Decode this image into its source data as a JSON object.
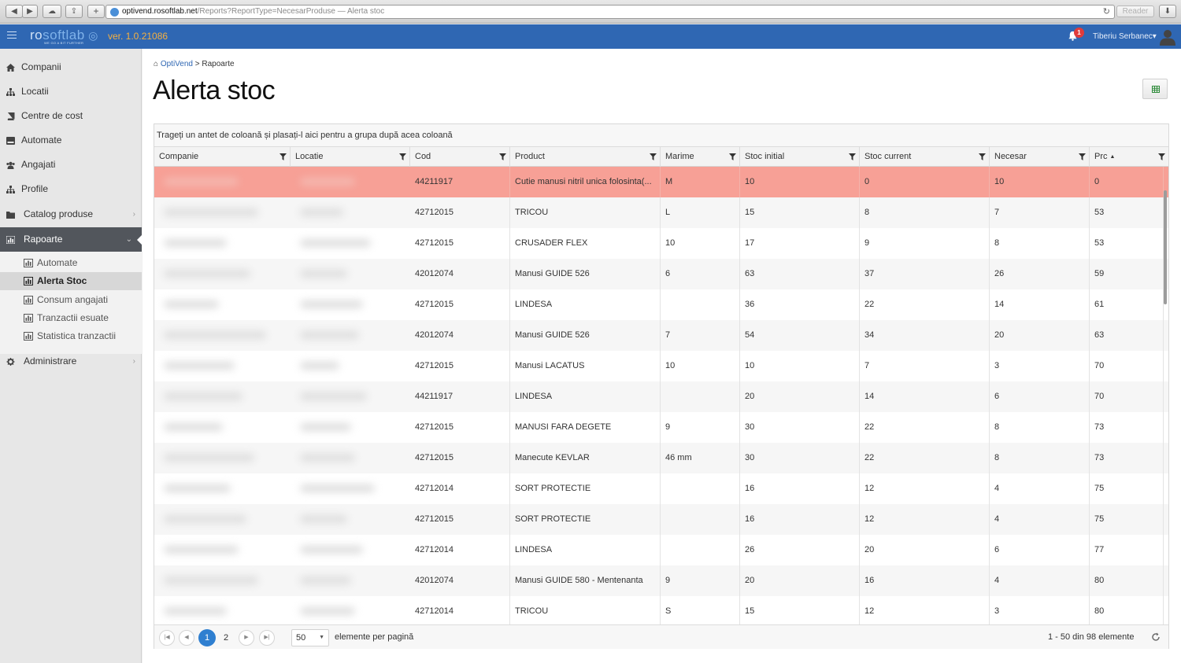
{
  "browser": {
    "url_host": "optivend.rosoftlab.net",
    "url_path": "/Reports?ReportType=NecesarProduse",
    "tab_title": " — Alerta stoc",
    "reader_label": "Reader"
  },
  "header": {
    "logo_part1": "ro",
    "logo_part2": "softlab",
    "logo_tagline": "WE GO A BIT FURTHER",
    "version": "ver. 1.0.21086",
    "notification_count": "1",
    "user_name": "Tiberiu Serbanec"
  },
  "sidebar": {
    "items": [
      {
        "label": "Companii",
        "icon": "home-icon"
      },
      {
        "label": "Locatii",
        "icon": "sitemap-icon"
      },
      {
        "label": "Centre de cost",
        "icon": "book-icon"
      },
      {
        "label": "Automate",
        "icon": "hdd-icon"
      },
      {
        "label": "Angajati",
        "icon": "users-icon"
      },
      {
        "label": "Profile",
        "icon": "sitemap-icon"
      },
      {
        "label": "Catalog produse",
        "icon": "folder-icon"
      },
      {
        "label": "Rapoarte",
        "icon": "bar-chart-icon"
      },
      {
        "label": "Administrare",
        "icon": "gear-icon"
      }
    ],
    "sub_items": [
      {
        "label": "Automate"
      },
      {
        "label": "Alerta Stoc"
      },
      {
        "label": "Consum angajati"
      },
      {
        "label": "Tranzactii esuate"
      },
      {
        "label": "Statistica tranzactii"
      }
    ]
  },
  "breadcrumb": {
    "home": "OptiVend",
    "separator": ">",
    "current": "Rapoarte"
  },
  "page_title": "Alerta stoc",
  "grid": {
    "group_hint": "Trageți un antet de coloană și plasați-l aici pentru a grupa după acea coloană",
    "columns": [
      "Companie",
      "Locatie",
      "Cod",
      "Product",
      "Marime",
      "Stoc initial",
      "Stoc current",
      "Necesar",
      "Prc"
    ],
    "rows": [
      {
        "cod": "44211917",
        "product": "Cutie manusi nitril unica folosinta(...",
        "marime": "M",
        "stoc_initial": "10",
        "stoc_current": "0",
        "necesar": "10",
        "prc": "0"
      },
      {
        "cod": "42712015",
        "product": "TRICOU",
        "marime": "L",
        "stoc_initial": "15",
        "stoc_current": "8",
        "necesar": "7",
        "prc": "53"
      },
      {
        "cod": "42712015",
        "product": "CRUSADER FLEX",
        "marime": "10",
        "stoc_initial": "17",
        "stoc_current": "9",
        "necesar": "8",
        "prc": "53"
      },
      {
        "cod": "42012074",
        "product": "Manusi GUIDE 526",
        "marime": "6",
        "stoc_initial": "63",
        "stoc_current": "37",
        "necesar": "26",
        "prc": "59"
      },
      {
        "cod": "42712015",
        "product": "LINDESA",
        "marime": "",
        "stoc_initial": "36",
        "stoc_current": "22",
        "necesar": "14",
        "prc": "61"
      },
      {
        "cod": "42012074",
        "product": "Manusi GUIDE 526",
        "marime": "7",
        "stoc_initial": "54",
        "stoc_current": "34",
        "necesar": "20",
        "prc": "63"
      },
      {
        "cod": "42712015",
        "product": "Manusi LACATUS",
        "marime": "10",
        "stoc_initial": "10",
        "stoc_current": "7",
        "necesar": "3",
        "prc": "70"
      },
      {
        "cod": "44211917",
        "product": "LINDESA",
        "marime": "",
        "stoc_initial": "20",
        "stoc_current": "14",
        "necesar": "6",
        "prc": "70"
      },
      {
        "cod": "42712015",
        "product": "MANUSI FARA DEGETE",
        "marime": "9",
        "stoc_initial": "30",
        "stoc_current": "22",
        "necesar": "8",
        "prc": "73"
      },
      {
        "cod": "42712015",
        "product": "Manecute KEVLAR",
        "marime": "46 mm",
        "stoc_initial": "30",
        "stoc_current": "22",
        "necesar": "8",
        "prc": "73"
      },
      {
        "cod": "42712014",
        "product": "SORT PROTECTIE",
        "marime": "",
        "stoc_initial": "16",
        "stoc_current": "12",
        "necesar": "4",
        "prc": "75"
      },
      {
        "cod": "42712015",
        "product": "SORT PROTECTIE",
        "marime": "",
        "stoc_initial": "16",
        "stoc_current": "12",
        "necesar": "4",
        "prc": "75"
      },
      {
        "cod": "42712014",
        "product": "LINDESA",
        "marime": "",
        "stoc_initial": "26",
        "stoc_current": "20",
        "necesar": "6",
        "prc": "77"
      },
      {
        "cod": "42012074",
        "product": "Manusi GUIDE 580 - Mentenanta",
        "marime": "9",
        "stoc_initial": "20",
        "stoc_current": "16",
        "necesar": "4",
        "prc": "80"
      },
      {
        "cod": "42712014",
        "product": "TRICOU",
        "marime": "S",
        "stoc_initial": "15",
        "stoc_current": "12",
        "necesar": "3",
        "prc": "80"
      }
    ]
  },
  "pager": {
    "pages": [
      "1",
      "2"
    ],
    "current_page": "1",
    "page_size": "50",
    "page_size_label": "elemente per pagină",
    "info": "1 - 50 din 98 elemente"
  },
  "colors": {
    "header_blue": "#2f67b3",
    "alert_row": "#f7a096",
    "version_orange": "#f5b041",
    "pager_active": "#2f7fd0"
  }
}
